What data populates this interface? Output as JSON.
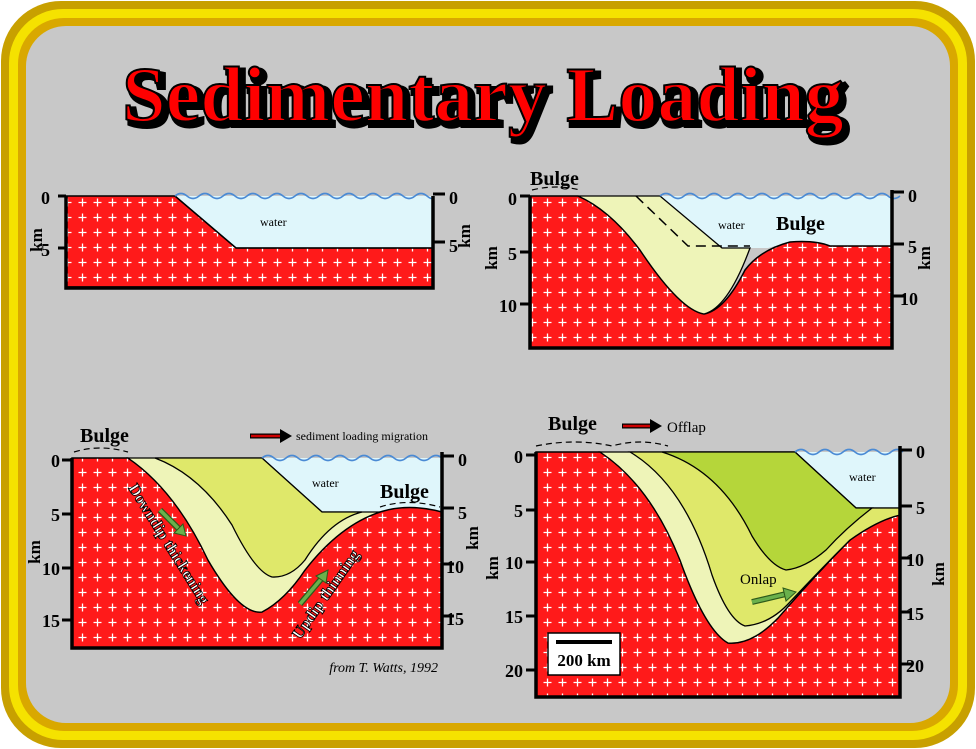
{
  "title": "Sedimentary Loading",
  "colors": {
    "frame_outer": "#c8a000",
    "frame_inner": "#f5e200",
    "background": "#c8c8c8",
    "title_fill": "#ff0000",
    "crust": "#ff1a1a",
    "water": "#dff6fb",
    "sediment_light": "#eef4b8",
    "sediment_mid": "#dfe86a",
    "sediment_dark": "#b5d63a",
    "arrow_dark": "#cc0000",
    "arrow_green": "#6ab04c"
  },
  "panel1": {
    "water_label": "water",
    "axis_unit": "km",
    "left_ticks": [
      "0",
      "5"
    ],
    "right_ticks": [
      "0",
      "5"
    ],
    "right_unit": "km"
  },
  "panel2": {
    "bulge_left": "Bulge",
    "bulge_right": "Bulge",
    "water_label": "water",
    "axis_unit": "km",
    "left_ticks": [
      "0",
      "5",
      "10"
    ],
    "right_ticks": [
      "0",
      "5",
      "10"
    ],
    "right_unit": "km"
  },
  "panel3": {
    "bulge_left": "Bulge",
    "bulge_right": "Bulge",
    "migration_label": "sediment loading migration",
    "water_label": "water",
    "downdip_label": "Downdip thickening",
    "updip_label": "Updip thinning",
    "axis_unit": "km",
    "left_ticks": [
      "0",
      "5",
      "10",
      "15"
    ],
    "right_ticks": [
      "0",
      "5",
      "10",
      "15"
    ],
    "right_unit": "km",
    "credit": "from T. Watts, 1992"
  },
  "panel4": {
    "bulge_left": "Bulge",
    "offlap_label": "Offlap",
    "onlap_label": "Onlap",
    "water_label": "water",
    "scale_label": "200 km",
    "axis_unit": "km",
    "left_ticks": [
      "0",
      "5",
      "10",
      "15",
      "20"
    ],
    "right_ticks": [
      "0",
      "5",
      "10",
      "15",
      "20"
    ],
    "right_unit": "km"
  }
}
